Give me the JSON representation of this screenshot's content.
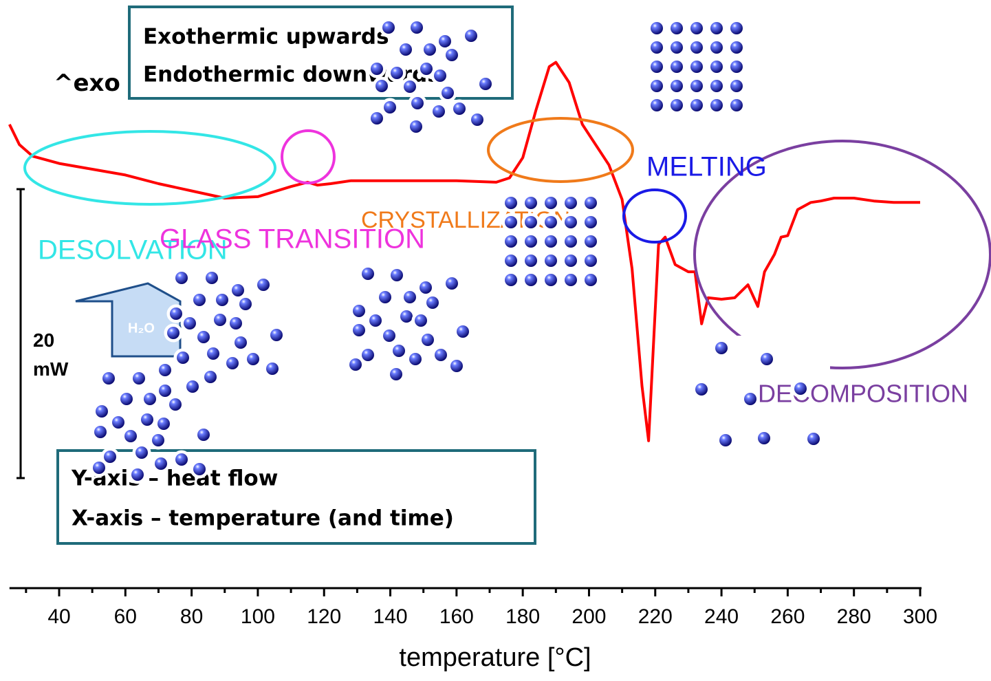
{
  "chart_data": {
    "type": "line",
    "x": [
      25,
      28,
      32,
      40,
      50,
      60,
      70,
      80,
      90,
      100,
      110,
      115,
      118,
      122,
      128,
      140,
      160,
      172,
      176,
      180,
      184,
      188,
      190,
      194,
      198,
      202,
      206,
      210,
      213,
      216,
      218,
      221,
      223,
      226,
      230,
      232,
      234,
      236,
      240,
      244,
      248,
      251,
      253,
      256,
      258,
      260,
      263,
      267,
      270,
      274,
      280,
      286,
      292,
      297,
      300
    ],
    "values": [
      32.1,
      30.7,
      29.9,
      29.4,
      29.0,
      28.6,
      28.0,
      27.5,
      27.0,
      27.1,
      27.8,
      28.1,
      27.9,
      28.0,
      28.2,
      28.2,
      28.2,
      28.1,
      28.4,
      29.8,
      33.1,
      36.1,
      36.4,
      35.0,
      32.1,
      30.7,
      29.3,
      26.9,
      22.1,
      14.0,
      10.2,
      23.8,
      24.3,
      22.4,
      21.9,
      21.9,
      18.3,
      20.1,
      20.0,
      20.1,
      21.0,
      19.5,
      21.9,
      23.1,
      24.3,
      24.4,
      26.2,
      26.7,
      26.8,
      27.0,
      27.0,
      26.8,
      26.7,
      26.7,
      26.7
    ],
    "color": "#ff0000",
    "xlim": [
      25,
      300
    ],
    "xticks": [
      40,
      60,
      80,
      100,
      120,
      140,
      160,
      180,
      200,
      220,
      240,
      260,
      280,
      300
    ],
    "xminorticks": [
      30,
      50,
      70,
      90,
      110,
      130,
      150,
      170,
      190,
      210,
      230,
      250,
      270,
      290
    ],
    "ylim": [
      0,
      40
    ],
    "xlabel": "temperature [°C]",
    "exo_label": "^exo",
    "scale_bar": {
      "value": 20,
      "label": "20 mW"
    },
    "notes": [
      "Exothermic upwards",
      "Endothermic downwards"
    ],
    "axis_notes": [
      "Y-axis – heat flow",
      "X-axis – temperature (and time)"
    ],
    "arrow_label": "H₂O",
    "annotations": [
      {
        "text": "DESOLVATION",
        "color": "#33e6e6"
      },
      {
        "text": "GLASS TRANSITION",
        "color": "#ee33dd"
      },
      {
        "text": "CRYSTALLIZATION",
        "color": "#f07a1a"
      },
      {
        "text": "MELTING",
        "color": "#1a1ae6"
      },
      {
        "text": "DECOMPOSITION",
        "color": "#7a3fa0"
      }
    ]
  }
}
